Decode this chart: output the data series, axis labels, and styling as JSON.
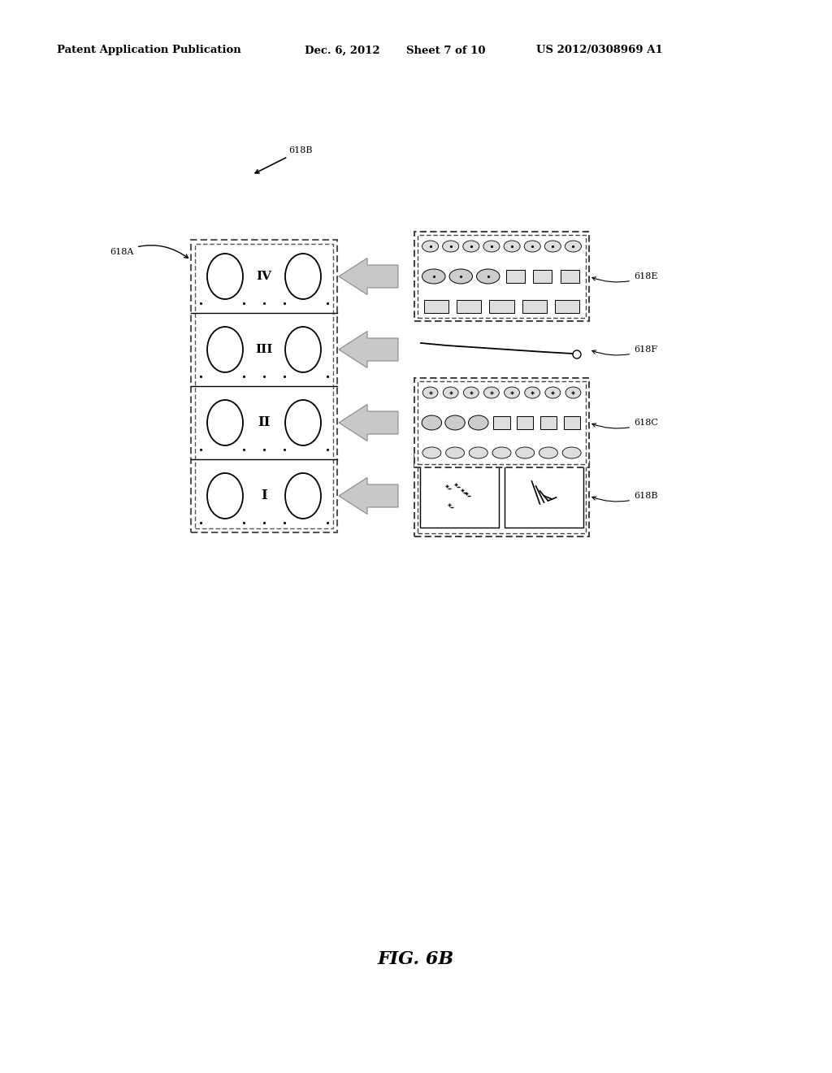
{
  "background_color": "#ffffff",
  "header_text": "Patent Application Publication",
  "header_date": "Dec. 6, 2012",
  "header_sheet": "Sheet 7 of 10",
  "header_patent": "US 2012/0308969 A1",
  "figure_label": "FIG. 6B",
  "rows": [
    "I",
    "II",
    "III",
    "IV"
  ]
}
